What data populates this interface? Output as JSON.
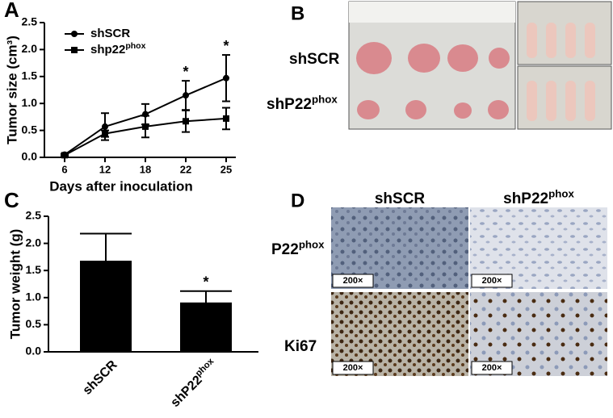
{
  "chart_data": [
    {
      "type": "line",
      "label": "A",
      "ylabel": "Tumor size (cm³)",
      "xlabel": "Days after inoculation",
      "categories": [
        "6",
        "12",
        "18",
        "22",
        "25"
      ],
      "series": [
        {
          "name": [
            "shSCR"
          ],
          "marker": "circle",
          "color": "#000000",
          "values": [
            0.05,
            0.57,
            0.8,
            1.15,
            1.47
          ],
          "errors": [
            0.02,
            0.25,
            0.19,
            0.27,
            0.43
          ]
        },
        {
          "name": [
            "shp22",
            "phox"
          ],
          "marker": "square",
          "color": "#000000",
          "values": [
            0.04,
            0.44,
            0.57,
            0.67,
            0.72
          ],
          "errors": [
            0.02,
            0.06,
            0.2,
            0.2,
            0.2
          ]
        }
      ],
      "ylim": [
        0,
        2.5
      ],
      "yticks": [
        {
          "value": 0,
          "label": "0.0"
        },
        0.5,
        {
          "value": 1,
          "label": "1.0"
        },
        1.5,
        {
          "value": 2,
          "label": "2.0"
        },
        2.5
      ],
      "annotations": [
        {
          "text": "*",
          "category": "22"
        },
        {
          "text": "*",
          "category": "25"
        }
      ],
      "legend": "upper left"
    },
    {
      "type": "bar",
      "label": "C",
      "ylabel": "Tumor weight (g)",
      "categories": [
        [
          "shSCR"
        ],
        [
          "shP22",
          "phox"
        ]
      ],
      "values": [
        1.68,
        0.91
      ],
      "errors": [
        0.5,
        0.21
      ],
      "color": "#000000",
      "ylim": [
        0,
        2.5
      ],
      "yticks": [
        {
          "value": 0,
          "label": "0.0"
        },
        0.5,
        {
          "value": 1,
          "label": "1.0"
        },
        1.5,
        {
          "value": 2,
          "label": "2.0"
        },
        2.5
      ],
      "annotations": [
        {
          "text": "*",
          "category_index": 1
        }
      ]
    }
  ],
  "panel_b": {
    "label": "B",
    "rows": [
      [
        "shSCR"
      ],
      [
        "shP22",
        "phox"
      ]
    ]
  },
  "panel_d": {
    "label": "D",
    "columns": [
      [
        "shSCR"
      ],
      [
        "shP22",
        "phox"
      ]
    ],
    "rows": [
      [
        "P22",
        "phox"
      ],
      [
        "Ki67"
      ]
    ],
    "magnification": "200×"
  }
}
